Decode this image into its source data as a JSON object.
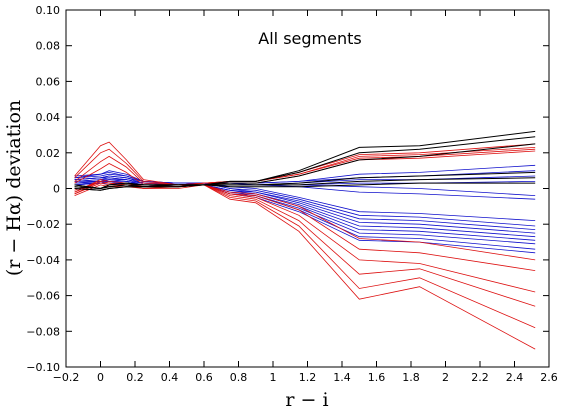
{
  "chart_data": {
    "type": "line",
    "title": "All segments",
    "xlabel": "r − i",
    "ylabel": "(r − Hα) deviation",
    "xlim": [
      -0.2,
      2.6
    ],
    "ylim": [
      -0.1,
      0.1
    ],
    "grid": false,
    "legend": "none",
    "x_ticks": [
      -0.2,
      0,
      0.2,
      0.4,
      0.6,
      0.8,
      1.0,
      1.2,
      1.4,
      1.6,
      1.8,
      2.0,
      2.2,
      2.4,
      2.6
    ],
    "x_tick_labels": [
      "−0.2",
      "0",
      "0.2",
      "0.4",
      "0.6",
      "0.8",
      "1",
      "1.2",
      "1.4",
      "1.6",
      "1.8",
      "2",
      "2.2",
      "2.4",
      "2.6"
    ],
    "y_ticks": [
      -0.1,
      -0.08,
      -0.06,
      -0.04,
      -0.02,
      0,
      0.02,
      0.04,
      0.06,
      0.08,
      0.1
    ],
    "y_tick_labels": [
      "−0.10",
      "−0.08",
      "−0.06",
      "−0.04",
      "−0.02",
      "0",
      "0.02",
      "0.04",
      "0.06",
      "0.08",
      "0.10"
    ],
    "x": [
      -0.15,
      0.0,
      0.05,
      0.15,
      0.25,
      0.45,
      0.6,
      0.75,
      0.9,
      1.15,
      1.5,
      1.85,
      2.52
    ],
    "series_colors": {
      "black": "#000000",
      "red": "#dd1111",
      "blue": "#1111cc"
    },
    "series": [
      {
        "color": "black",
        "values": [
          0.002,
          0.0,
          0.002,
          0.003,
          0.002,
          0.002,
          0.002,
          0.004,
          0.004,
          0.01,
          0.023,
          0.024,
          0.032
        ]
      },
      {
        "color": "black",
        "values": [
          0.002,
          0.0,
          0.002,
          0.003,
          0.002,
          0.002,
          0.002,
          0.004,
          0.004,
          0.009,
          0.02,
          0.022,
          0.029
        ]
      },
      {
        "color": "black",
        "values": [
          0.001,
          0.0,
          0.001,
          0.002,
          0.002,
          0.002,
          0.002,
          0.003,
          0.003,
          0.007,
          0.016,
          0.018,
          0.025
        ]
      },
      {
        "color": "black",
        "values": [
          0.001,
          0.0,
          0.001,
          0.002,
          0.001,
          0.002,
          0.002,
          0.002,
          0.002,
          0.003,
          0.006,
          0.007,
          0.009
        ]
      },
      {
        "color": "black",
        "values": [
          0.0,
          -0.001,
          0.0,
          0.001,
          0.001,
          0.001,
          0.002,
          0.002,
          0.002,
          0.002,
          0.004,
          0.005,
          0.006
        ]
      },
      {
        "color": "black",
        "values": [
          0.0,
          -0.001,
          0.0,
          0.001,
          0.001,
          0.001,
          0.002,
          0.001,
          0.001,
          0.001,
          0.002,
          0.003,
          0.003
        ]
      },
      {
        "color": "red",
        "values": [
          0.007,
          0.024,
          0.026,
          0.016,
          0.005,
          0.002,
          0.003,
          0.004,
          0.004,
          0.009,
          0.019,
          0.02,
          0.025
        ]
      },
      {
        "color": "red",
        "values": [
          0.006,
          0.02,
          0.022,
          0.014,
          0.004,
          0.002,
          0.003,
          0.004,
          0.004,
          0.008,
          0.018,
          0.019,
          0.023
        ]
      },
      {
        "color": "red",
        "values": [
          0.004,
          0.015,
          0.018,
          0.012,
          0.003,
          0.002,
          0.003,
          0.004,
          0.004,
          0.008,
          0.017,
          0.018,
          0.022
        ]
      },
      {
        "color": "red",
        "values": [
          0.003,
          0.011,
          0.014,
          0.009,
          0.002,
          0.001,
          0.003,
          0.003,
          0.003,
          0.007,
          0.016,
          0.017,
          0.021
        ]
      },
      {
        "color": "red",
        "values": [
          -0.002,
          0.005,
          0.004,
          0.003,
          0.001,
          0.001,
          0.002,
          -0.003,
          -0.005,
          -0.015,
          -0.04,
          -0.042,
          -0.058
        ]
      },
      {
        "color": "red",
        "values": [
          -0.003,
          0.004,
          0.003,
          0.002,
          0.001,
          0.001,
          0.002,
          -0.004,
          -0.006,
          -0.018,
          -0.048,
          -0.045,
          -0.066
        ]
      },
      {
        "color": "red",
        "values": [
          -0.003,
          0.003,
          0.002,
          0.002,
          0.0,
          0.001,
          0.002,
          -0.005,
          -0.007,
          -0.021,
          -0.056,
          -0.05,
          -0.078
        ]
      },
      {
        "color": "red",
        "values": [
          -0.004,
          0.002,
          0.001,
          0.001,
          0.0,
          0.0,
          0.002,
          -0.006,
          -0.008,
          -0.024,
          -0.062,
          -0.055,
          -0.09
        ]
      },
      {
        "color": "red",
        "values": [
          -0.002,
          0.004,
          0.003,
          0.002,
          0.001,
          0.001,
          0.002,
          -0.003,
          -0.004,
          -0.012,
          -0.034,
          -0.036,
          -0.046
        ]
      },
      {
        "color": "red",
        "values": [
          -0.001,
          0.004,
          0.003,
          0.002,
          0.001,
          0.001,
          0.002,
          -0.002,
          -0.003,
          -0.01,
          -0.028,
          -0.03,
          -0.04
        ]
      },
      {
        "color": "blue",
        "values": [
          0.007,
          0.008,
          0.01,
          0.008,
          0.004,
          0.003,
          0.003,
          0.003,
          0.002,
          0.002,
          0.001,
          0.0,
          -0.004
        ]
      },
      {
        "color": "blue",
        "values": [
          0.006,
          0.008,
          0.009,
          0.007,
          0.004,
          0.003,
          0.003,
          0.003,
          0.003,
          0.004,
          0.008,
          0.009,
          0.013
        ]
      },
      {
        "color": "blue",
        "values": [
          0.006,
          0.007,
          0.008,
          0.007,
          0.004,
          0.003,
          0.003,
          0.003,
          0.003,
          0.004,
          0.006,
          0.007,
          0.01
        ]
      },
      {
        "color": "blue",
        "values": [
          0.005,
          0.006,
          0.007,
          0.006,
          0.004,
          0.003,
          0.003,
          0.003,
          0.002,
          0.001,
          -0.002,
          -0.003,
          -0.006
        ]
      },
      {
        "color": "blue",
        "values": [
          0.005,
          0.006,
          0.007,
          0.006,
          0.003,
          0.003,
          0.003,
          0.001,
          0.0,
          -0.005,
          -0.013,
          -0.014,
          -0.018
        ]
      },
      {
        "color": "blue",
        "values": [
          0.005,
          0.006,
          0.006,
          0.005,
          0.003,
          0.002,
          0.003,
          0.0,
          -0.001,
          -0.006,
          -0.015,
          -0.016,
          -0.021
        ]
      },
      {
        "color": "blue",
        "values": [
          0.004,
          0.005,
          0.006,
          0.005,
          0.003,
          0.002,
          0.003,
          0.0,
          -0.002,
          -0.007,
          -0.017,
          -0.018,
          -0.023
        ]
      },
      {
        "color": "blue",
        "values": [
          0.004,
          0.005,
          0.005,
          0.005,
          0.003,
          0.002,
          0.002,
          -0.001,
          -0.002,
          -0.008,
          -0.019,
          -0.02,
          -0.025
        ]
      },
      {
        "color": "blue",
        "values": [
          0.004,
          0.004,
          0.005,
          0.004,
          0.003,
          0.002,
          0.002,
          -0.001,
          -0.003,
          -0.009,
          -0.021,
          -0.022,
          -0.027
        ]
      },
      {
        "color": "blue",
        "values": [
          0.003,
          0.004,
          0.005,
          0.004,
          0.002,
          0.002,
          0.002,
          -0.002,
          -0.003,
          -0.01,
          -0.023,
          -0.024,
          -0.029
        ]
      },
      {
        "color": "blue",
        "values": [
          0.003,
          0.004,
          0.004,
          0.004,
          0.002,
          0.002,
          0.002,
          -0.002,
          -0.004,
          -0.011,
          -0.025,
          -0.026,
          -0.031
        ]
      },
      {
        "color": "blue",
        "values": [
          0.003,
          0.003,
          0.004,
          0.003,
          0.002,
          0.002,
          0.002,
          -0.003,
          -0.004,
          -0.012,
          -0.027,
          -0.028,
          -0.034
        ]
      },
      {
        "color": "blue",
        "values": [
          0.002,
          0.003,
          0.004,
          0.003,
          0.002,
          0.001,
          0.002,
          -0.003,
          -0.005,
          -0.013,
          -0.029,
          -0.03,
          -0.036
        ]
      },
      {
        "color": "blue",
        "values": [
          0.002,
          0.003,
          0.003,
          0.003,
          0.002,
          0.001,
          0.002,
          0.002,
          0.002,
          0.002,
          0.003,
          0.003,
          0.004
        ]
      },
      {
        "color": "blue",
        "values": [
          0.002,
          0.003,
          0.003,
          0.003,
          0.002,
          0.001,
          0.002,
          0.002,
          0.002,
          0.003,
          0.005,
          0.005,
          0.007
        ]
      }
    ]
  }
}
